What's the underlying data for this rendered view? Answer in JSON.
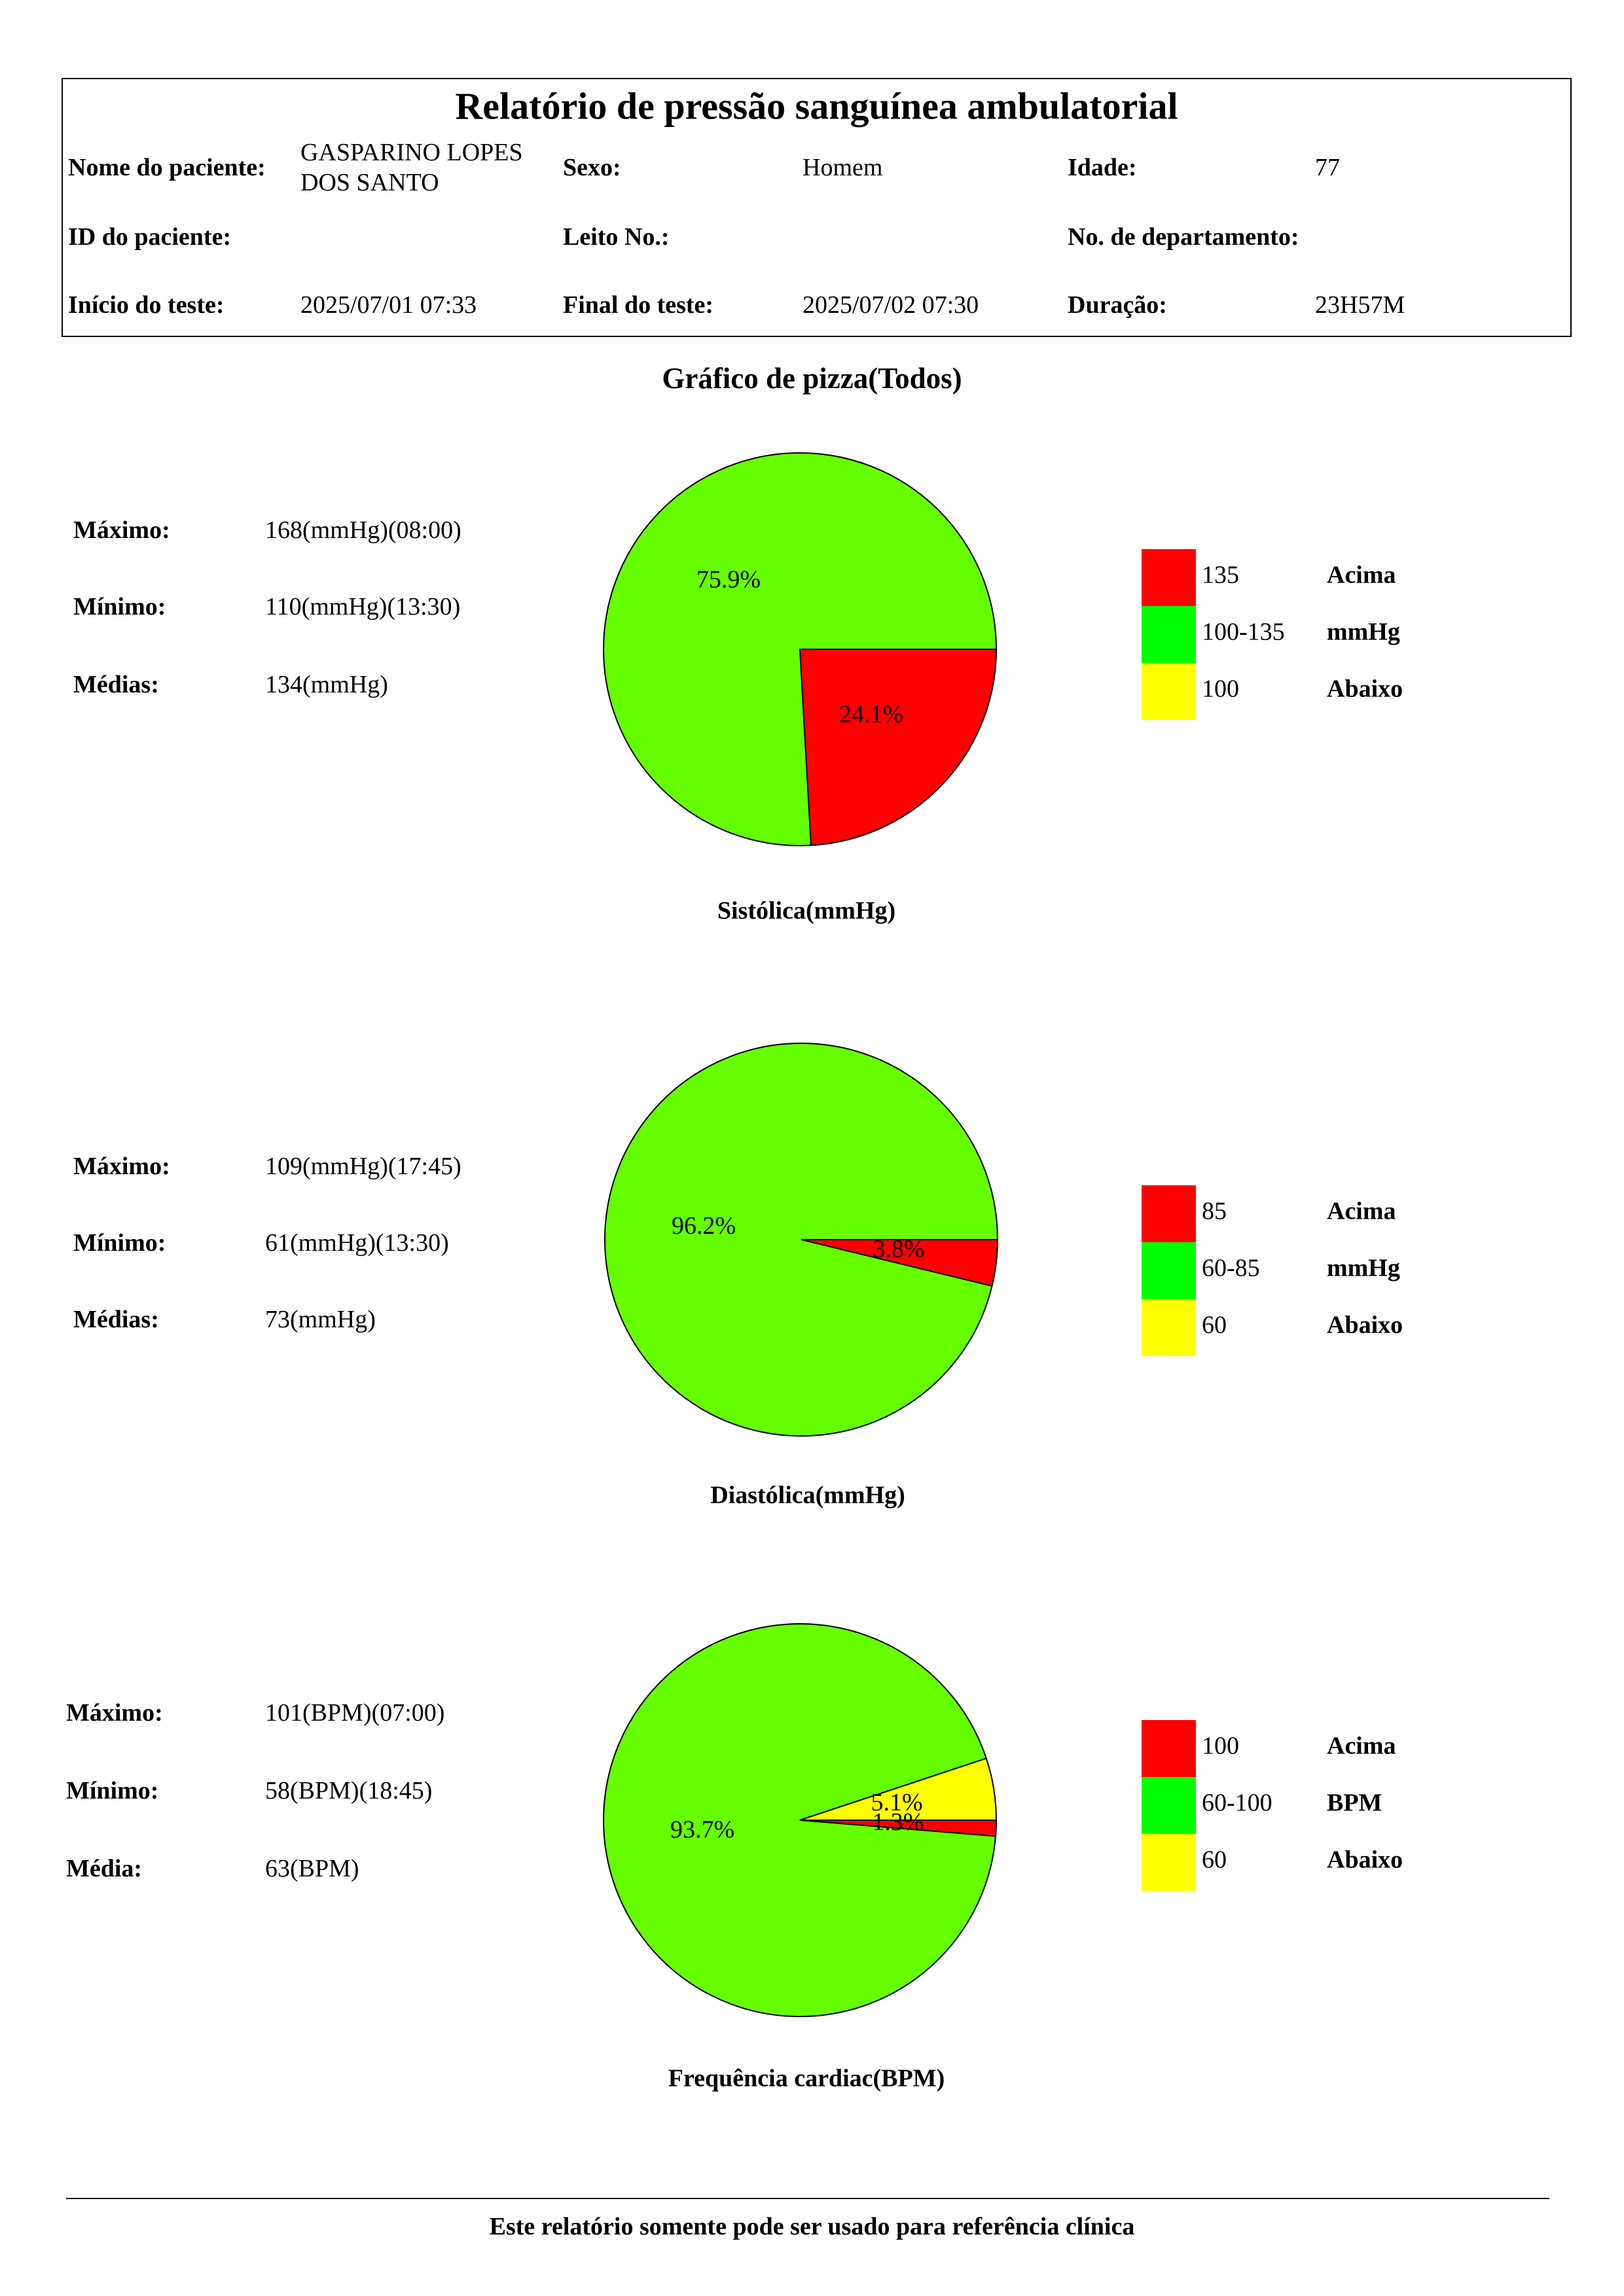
{
  "header": {
    "title": "Relatório de pressão sanguínea ambulatorial",
    "fields": [
      {
        "label": "Nome do paciente:",
        "value": "GASPARINO LOPES  DOS SANTO"
      },
      {
        "label": "Sexo:",
        "value": "Homem"
      },
      {
        "label": "Idade:",
        "value": "77"
      },
      {
        "label": "ID do paciente:"
      },
      {
        "label": "Leito No.:"
      },
      {
        "label": "No. de departamento:"
      },
      {
        "label": "Início do teste:",
        "value": "2025/07/01 07:33"
      },
      {
        "label": "Final do teste:",
        "value": "2025/07/02 07:30"
      },
      {
        "label": "Duração:",
        "value": "23H57M"
      }
    ]
  },
  "section_title": "Gráfico de pizza(Todos)",
  "chart_data": [
    {
      "type": "pie",
      "title": "Sistólica(mmHg)",
      "stats": [
        {
          "label": "Máximo:",
          "value": "168(mmHg)(08:00)"
        },
        {
          "label": "Mínimo:",
          "value": "110(mmHg)(13:30)"
        },
        {
          "label": "Médias:",
          "value": "134(mmHg)"
        }
      ],
      "categories": [
        "Acima",
        "mmHg",
        "Abaixo"
      ],
      "ranges": [
        "135",
        "100-135",
        "100"
      ],
      "values": [
        24.1,
        75.9,
        0
      ],
      "value_labels": [
        "24.1%",
        "75.9%",
        null
      ],
      "colors": [
        "#ff0000",
        "#66ff00",
        "#ffff00"
      ],
      "legend_colors": [
        "#ff0000",
        "#00ff00",
        "#ffff00"
      ]
    },
    {
      "type": "pie",
      "title": "Diastólica(mmHg)",
      "stats": [
        {
          "label": "Máximo:",
          "value": "109(mmHg)(17:45)"
        },
        {
          "label": "Mínimo:",
          "value": "61(mmHg)(13:30)"
        },
        {
          "label": "Médias:",
          "value": "73(mmHg)"
        }
      ],
      "categories": [
        "Acima",
        "mmHg",
        "Abaixo"
      ],
      "ranges": [
        "85",
        "60-85",
        "60"
      ],
      "values": [
        3.8,
        96.2,
        0
      ],
      "value_labels": [
        "3.8%",
        "96.2%",
        null
      ],
      "colors": [
        "#ff0000",
        "#66ff00",
        "#ffff00"
      ],
      "legend_colors": [
        "#ff0000",
        "#00ff00",
        "#ffff00"
      ]
    },
    {
      "type": "pie",
      "title": "Frequência cardiac(BPM)",
      "stats": [
        {
          "label": "Máximo:",
          "value": "101(BPM)(07:00)"
        },
        {
          "label": "Mínimo:",
          "value": "58(BPM)(18:45)"
        },
        {
          "label": "Média:",
          "value": "63(BPM)"
        }
      ],
      "categories": [
        "Acima",
        "BPM",
        "Abaixo"
      ],
      "ranges": [
        "100",
        "60-100",
        "60"
      ],
      "values": [
        1.3,
        93.7,
        5.1
      ],
      "value_labels": [
        "1.3%",
        "93.7%",
        "5.1%"
      ],
      "colors": [
        "#ff0000",
        "#66ff00",
        "#ffff00"
      ],
      "legend_colors": [
        "#ff0000",
        "#00ff00",
        "#ffff00"
      ]
    }
  ],
  "footer": "Este relatório somente pode ser usado para referência clínica"
}
